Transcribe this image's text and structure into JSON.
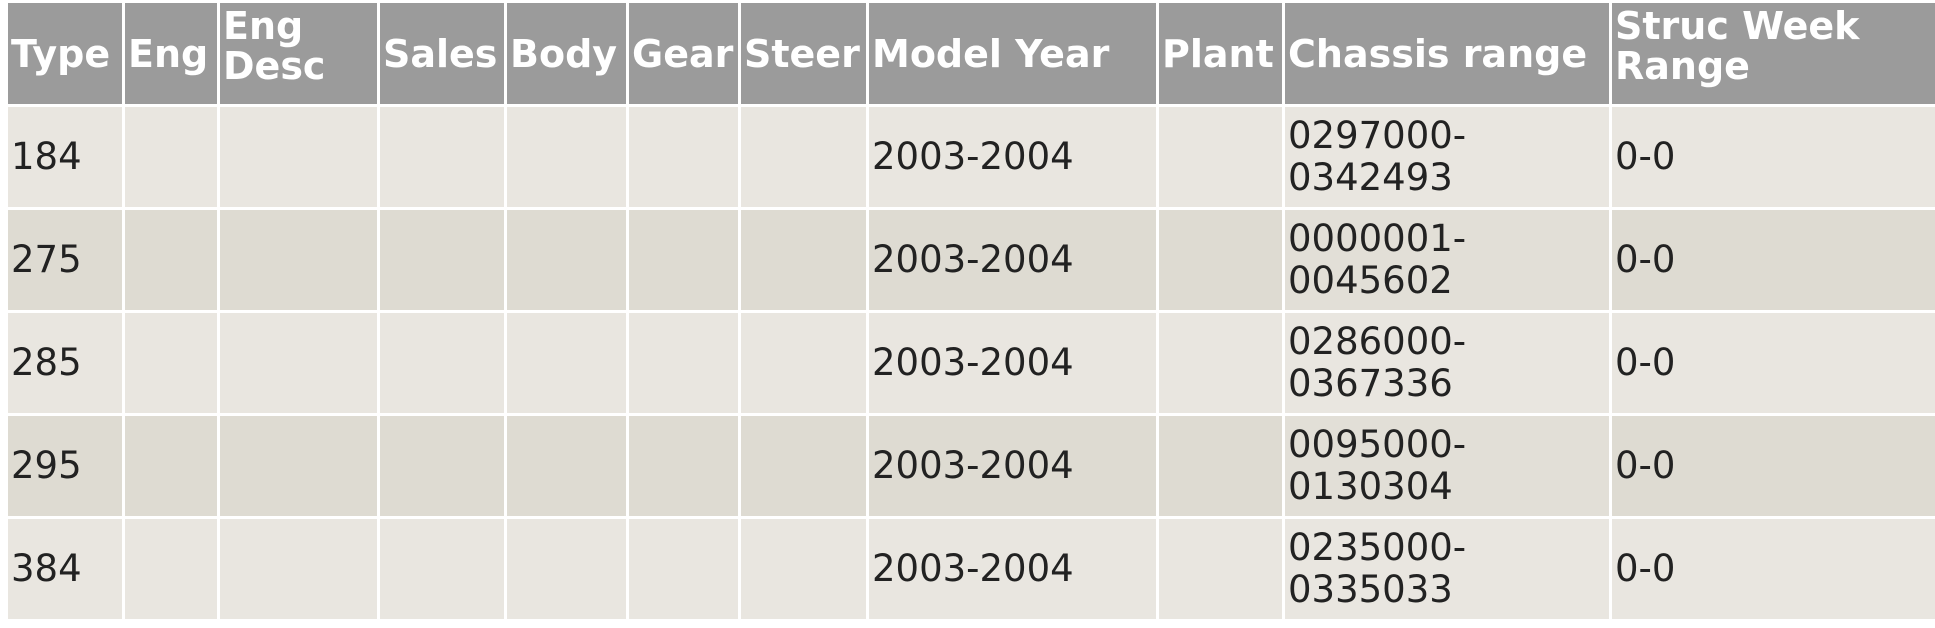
{
  "table": {
    "headers": {
      "type": "Type",
      "eng": "Eng",
      "eng_desc": "Eng Desc",
      "sales": "Sales",
      "body": "Body",
      "gear": "Gear",
      "steer": "Steer",
      "model_year": "Model Year",
      "plant": "Plant",
      "chassis_range": "Chassis range",
      "struc_week_range": "Struc Week Range"
    },
    "rows": [
      {
        "type": "184",
        "eng": "",
        "eng_desc": "",
        "sales": "",
        "body": "",
        "gear": "",
        "steer": "",
        "model_year": "2003-2004",
        "plant": "",
        "chassis_range": "0297000-0342493",
        "struc_week_range": "0-0"
      },
      {
        "type": "275",
        "eng": "",
        "eng_desc": "",
        "sales": "",
        "body": "",
        "gear": "",
        "steer": "",
        "model_year": "2003-2004",
        "plant": "",
        "chassis_range": "0000001-0045602",
        "struc_week_range": "0-0"
      },
      {
        "type": "285",
        "eng": "",
        "eng_desc": "",
        "sales": "",
        "body": "",
        "gear": "",
        "steer": "",
        "model_year": "2003-2004",
        "plant": "",
        "chassis_range": "0286000-0367336",
        "struc_week_range": "0-0"
      },
      {
        "type": "295",
        "eng": "",
        "eng_desc": "",
        "sales": "",
        "body": "",
        "gear": "",
        "steer": "",
        "model_year": "2003-2004",
        "plant": "",
        "chassis_range": "0095000-0130304",
        "struc_week_range": "0-0"
      },
      {
        "type": "384",
        "eng": "",
        "eng_desc": "",
        "sales": "",
        "body": "",
        "gear": "",
        "steer": "",
        "model_year": "2003-2004",
        "plant": "",
        "chassis_range": "0235000-0335033",
        "struc_week_range": "0-0"
      }
    ]
  }
}
